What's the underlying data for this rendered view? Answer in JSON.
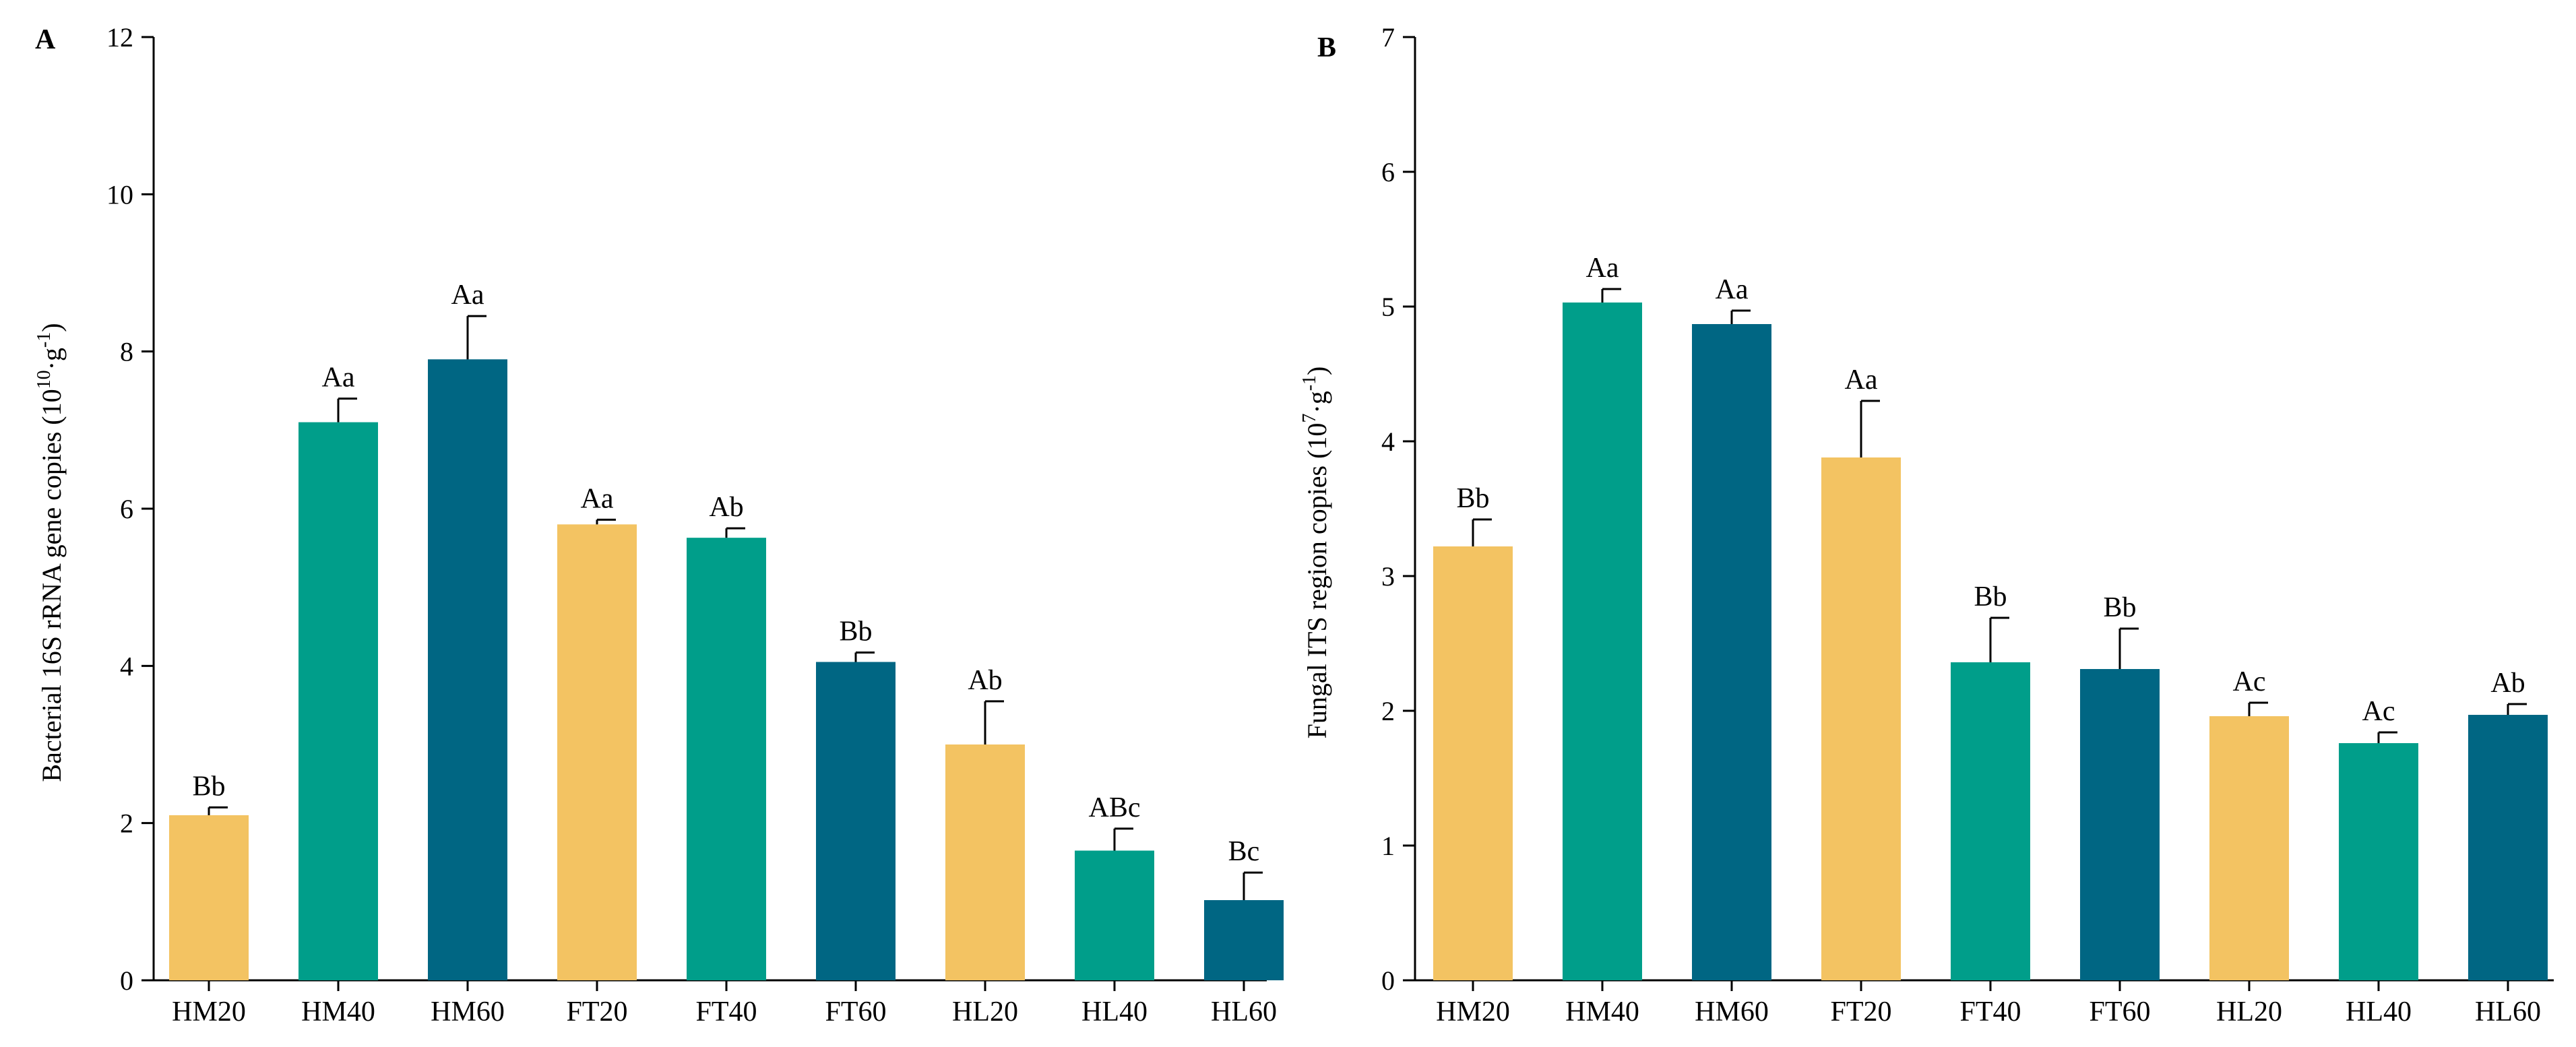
{
  "figure": {
    "panel_a_letter": "A",
    "panel_b_letter": "B"
  },
  "colors": {
    "c20": "#F3C362",
    "c40": "#009E8A",
    "c60": "#006683"
  },
  "chart_data": [
    {
      "type": "bar",
      "panel": "A",
      "categories": [
        "HM20",
        "HM40",
        "HM60",
        "FT20",
        "FT40",
        "FT60",
        "HL20",
        "HL40",
        "HL60"
      ],
      "values": [
        2.1,
        7.1,
        7.9,
        5.8,
        5.63,
        4.05,
        3.0,
        1.65,
        1.02
      ],
      "errors": [
        0.1,
        0.3,
        0.55,
        0.06,
        0.12,
        0.12,
        0.55,
        0.28,
        0.35
      ],
      "labels": [
        "Bb",
        "Aa",
        "Aa",
        "Aa",
        "Ab",
        "Bb",
        "Ab",
        "ABc",
        "Bc"
      ],
      "ylabel_main": "Bacterial 16S rRNA gene copies (10",
      "ylabel_sup1": "10",
      "ylabel_mid": "·g",
      "ylabel_sup2": "-1",
      "ylabel_end": ")",
      "ylim": [
        0,
        12
      ],
      "yticks": [
        0,
        2,
        4,
        6,
        8,
        10,
        12
      ]
    },
    {
      "type": "bar",
      "panel": "B",
      "categories": [
        "HM20",
        "HM40",
        "HM60",
        "FT20",
        "FT40",
        "FT60",
        "HL20",
        "HL40",
        "HL60"
      ],
      "values": [
        3.22,
        5.03,
        4.87,
        3.88,
        2.36,
        2.31,
        1.96,
        1.76,
        1.97
      ],
      "errors": [
        0.2,
        0.1,
        0.1,
        0.42,
        0.33,
        0.3,
        0.1,
        0.08,
        0.08
      ],
      "labels": [
        "Bb",
        "Aa",
        "Aa",
        "Aa",
        "Bb",
        "Bb",
        "Ac",
        "Ac",
        "Ab"
      ],
      "ylabel_main": "Fungal ITS region copies (10",
      "ylabel_sup1": "7",
      "ylabel_mid": "·g",
      "ylabel_sup2": "-1",
      "ylabel_end": ")",
      "ylim": [
        0,
        7
      ],
      "yticks": [
        0,
        1,
        2,
        3,
        4,
        5,
        6,
        7
      ]
    }
  ]
}
